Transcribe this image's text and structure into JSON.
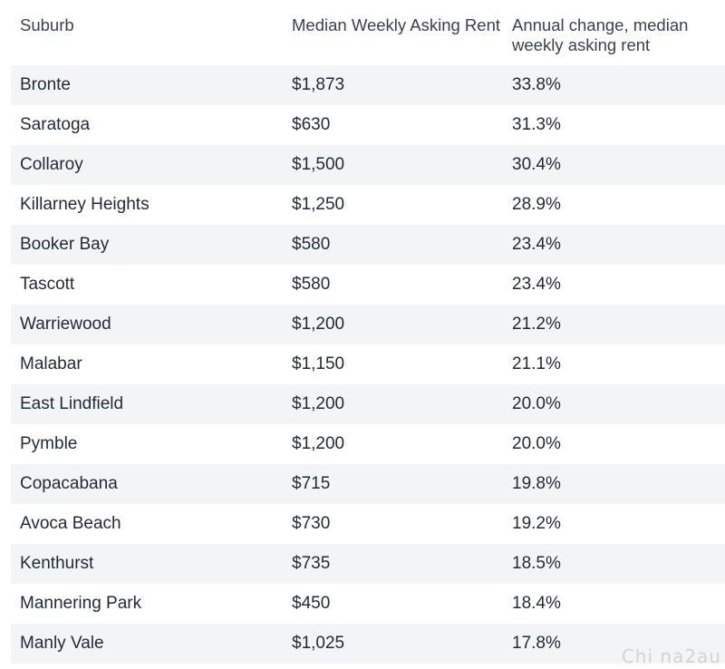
{
  "table": {
    "headers": [
      "Suburb",
      "Median Weekly Asking Rent",
      "Annual change, median weekly asking rent"
    ],
    "rows": [
      [
        "Bronte",
        "$1,873",
        "33.8%"
      ],
      [
        "Saratoga",
        "$630",
        "31.3%"
      ],
      [
        "Collaroy",
        "$1,500",
        "30.4%"
      ],
      [
        "Killarney Heights",
        "$1,250",
        "28.9%"
      ],
      [
        "Booker Bay",
        "$580",
        "23.4%"
      ],
      [
        "Tascott",
        "$580",
        "23.4%"
      ],
      [
        "Warriewood",
        "$1,200",
        "21.2%"
      ],
      [
        "Malabar",
        "$1,150",
        "21.1%"
      ],
      [
        "East Lindfield",
        "$1,200",
        "20.0%"
      ],
      [
        "Pymble",
        "$1,200",
        "20.0%"
      ],
      [
        "Copacabana",
        "$715",
        "19.8%"
      ],
      [
        "Avoca Beach",
        "$730",
        "19.2%"
      ],
      [
        "Kenthurst",
        "$735",
        "18.5%"
      ],
      [
        "Mannering Park",
        "$450",
        "18.4%"
      ],
      [
        "Manly Vale",
        "$1,025",
        "17.8%"
      ]
    ]
  },
  "watermark": "Chi na2au"
}
